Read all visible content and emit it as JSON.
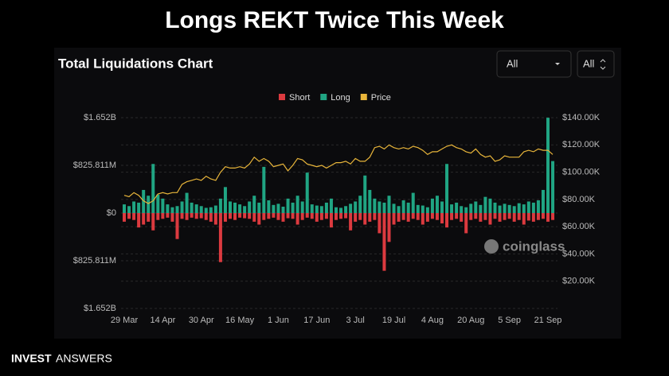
{
  "header": {
    "title": "Longs REKT Twice This Week"
  },
  "footer": {
    "brand_bold": "INVEST",
    "brand_light": "ANSWERS"
  },
  "controls": {
    "range": "All",
    "filter": "All"
  },
  "watermark": "coinglass",
  "chart_data": {
    "type": "bar",
    "title": "Total Liquidations Chart",
    "categories": [
      "29 Mar",
      null,
      null,
      null,
      null,
      null,
      null,
      null,
      "14 Apr",
      null,
      null,
      null,
      null,
      null,
      null,
      null,
      "30 Apr",
      null,
      null,
      null,
      null,
      null,
      null,
      null,
      "16 May",
      null,
      null,
      null,
      null,
      null,
      null,
      null,
      "1 Jun",
      null,
      null,
      null,
      null,
      null,
      null,
      null,
      "17 Jun",
      null,
      null,
      null,
      null,
      null,
      null,
      null,
      "3 Jul",
      null,
      null,
      null,
      null,
      null,
      null,
      null,
      "19 Jul",
      null,
      null,
      null,
      null,
      null,
      null,
      null,
      "4 Aug",
      null,
      null,
      null,
      null,
      null,
      null,
      null,
      "20 Aug",
      null,
      null,
      null,
      null,
      null,
      null,
      null,
      "5 Sep",
      null,
      null,
      null,
      null,
      null,
      null,
      null,
      "21 Sep",
      null
    ],
    "series": [
      {
        "name": "Short",
        "color": "#dc3a3f",
        "values": [
          -150000000.0,
          -100000000.0,
          -120000000.0,
          -250000000.0,
          -200000000.0,
          -150000000.0,
          -300000000.0,
          -120000000.0,
          -100000000.0,
          -80000000.0,
          -150000000.0,
          -450000000.0,
          -100000000.0,
          -120000000.0,
          -80000000.0,
          -100000000.0,
          -90000000.0,
          -120000000.0,
          -150000000.0,
          -200000000.0,
          -850000000.0,
          -150000000.0,
          -100000000.0,
          -120000000.0,
          -80000000.0,
          -90000000.0,
          -100000000.0,
          -150000000.0,
          -200000000.0,
          -120000000.0,
          -100000000.0,
          -80000000.0,
          -120000000.0,
          -150000000.0,
          -90000000.0,
          -100000000.0,
          -200000000.0,
          -120000000.0,
          -80000000.0,
          -100000000.0,
          -150000000.0,
          -120000000.0,
          -100000000.0,
          -250000000.0,
          -120000000.0,
          -100000000.0,
          -90000000.0,
          -300000000.0,
          -150000000.0,
          -120000000.0,
          -200000000.0,
          -150000000.0,
          -120000000.0,
          -350000000.0,
          -1000000000.0,
          -500000000.0,
          -200000000.0,
          -150000000.0,
          -120000000.0,
          -150000000.0,
          -100000000.0,
          -120000000.0,
          -200000000.0,
          -150000000.0,
          -100000000.0,
          -120000000.0,
          -180000000.0,
          -250000000.0,
          -120000000.0,
          -100000000.0,
          -150000000.0,
          -350000000.0,
          -120000000.0,
          -100000000.0,
          -150000000.0,
          -120000000.0,
          -200000000.0,
          -100000000.0,
          -150000000.0,
          -120000000.0,
          -100000000.0,
          -150000000.0,
          -120000000.0,
          -200000000.0,
          -130000000.0,
          -150000000.0,
          -120000000.0,
          -100000000.0,
          -150000000.0,
          -120000000.0
        ]
      },
      {
        "name": "Long",
        "color": "#20a583",
        "values": [
          150000000.0,
          120000000.0,
          200000000.0,
          180000000.0,
          400000000.0,
          300000000.0,
          850000000.0,
          320000000.0,
          250000000.0,
          150000000.0,
          100000000.0,
          120000000.0,
          200000000.0,
          350000000.0,
          180000000.0,
          150000000.0,
          120000000.0,
          90000000.0,
          100000000.0,
          130000000.0,
          250000000.0,
          450000000.0,
          200000000.0,
          180000000.0,
          150000000.0,
          120000000.0,
          200000000.0,
          300000000.0,
          180000000.0,
          800000000.0,
          220000000.0,
          140000000.0,
          160000000.0,
          110000000.0,
          250000000.0,
          180000000.0,
          300000000.0,
          200000000.0,
          700000000.0,
          150000000.0,
          130000000.0,
          120000000.0,
          180000000.0,
          250000000.0,
          100000000.0,
          90000000.0,
          120000000.0,
          160000000.0,
          200000000.0,
          300000000.0,
          650000000.0,
          400000000.0,
          250000000.0,
          200000000.0,
          180000000.0,
          300000000.0,
          160000000.0,
          120000000.0,
          220000000.0,
          180000000.0,
          350000000.0,
          140000000.0,
          130000000.0,
          100000000.0,
          250000000.0,
          300000000.0,
          200000000.0,
          850000000.0,
          150000000.0,
          180000000.0,
          120000000.0,
          100000000.0,
          160000000.0,
          200000000.0,
          140000000.0,
          280000000.0,
          250000000.0,
          180000000.0,
          130000000.0,
          160000000.0,
          140000000.0,
          120000000.0,
          170000000.0,
          150000000.0,
          200000000.0,
          180000000.0,
          220000000.0,
          400000000.0,
          1650000000.0,
          900000000.0
        ]
      },
      {
        "name": "Price",
        "color": "#e8b53a",
        "axis": "y2",
        "values": [
          83000,
          82000,
          85000,
          83000,
          79000,
          77000,
          79000,
          84000,
          85000,
          84000,
          85000,
          85000,
          91000,
          93000,
          94000,
          95000,
          94000,
          97000,
          95000,
          94000,
          100000,
          104000,
          103000,
          103000,
          104000,
          103000,
          106000,
          111000,
          108000,
          110000,
          108000,
          104000,
          105000,
          106000,
          101000,
          105000,
          110000,
          109000,
          106000,
          105000,
          104000,
          105000,
          103000,
          105000,
          107000,
          107000,
          108000,
          106000,
          110000,
          108000,
          108000,
          111000,
          118000,
          119000,
          117000,
          120000,
          118000,
          117000,
          118000,
          117000,
          119000,
          118000,
          116000,
          113000,
          115000,
          115000,
          117000,
          119000,
          120000,
          118000,
          117000,
          115000,
          114000,
          117000,
          113000,
          111000,
          112000,
          108000,
          109000,
          112000,
          111000,
          111000,
          111000,
          115000,
          116000,
          115000,
          117000,
          116000,
          116000,
          113000
        ]
      }
    ],
    "ylim": [
      -1652000000,
      1652000000
    ],
    "yticks": [
      {
        "value": 1652000000,
        "label": "$1.652B"
      },
      {
        "value": 825811000,
        "label": "$825.811M"
      },
      {
        "value": 0,
        "label": "$0"
      },
      {
        "value": -825811000,
        "label": "$825.811M"
      },
      {
        "value": -1652000000,
        "label": "$1.652B"
      }
    ],
    "y2lim": [
      0,
      140000
    ],
    "y2ticks": [
      {
        "value": 140000,
        "label": "$140.00K"
      },
      {
        "value": 120000,
        "label": "$120.00K"
      },
      {
        "value": 100000,
        "label": "$100.00K"
      },
      {
        "value": 80000,
        "label": "$80.00K"
      },
      {
        "value": 60000,
        "label": "$60.00K"
      },
      {
        "value": 40000,
        "label": "$40.00K"
      },
      {
        "value": 20000,
        "label": "$20.00K"
      }
    ],
    "grid": true,
    "legend": "top"
  }
}
